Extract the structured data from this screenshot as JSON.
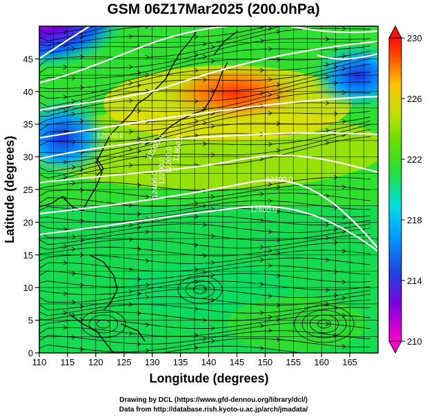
{
  "title": "GSM 06Z17Mar2025 (200.0hPa)",
  "xlabel": "Longitude (degrees)",
  "ylabel": "Latitude  (degrees)",
  "x_ticks": [
    "110",
    "115",
    "120",
    "125",
    "130",
    "135",
    "140",
    "145",
    "150",
    "155",
    "160",
    "165"
  ],
  "y_ticks": [
    "0",
    "5",
    "10",
    "15",
    "20",
    "25",
    "30",
    "35",
    "40",
    "45"
  ],
  "colorbar": {
    "ticks": [
      "230",
      "226",
      "222",
      "218",
      "214",
      "210"
    ],
    "min": 210,
    "max": 230,
    "colors": [
      "#ff00cc",
      "#a000e0",
      "#2020e0",
      "#00a0ff",
      "#00e0e0",
      "#00e080",
      "#20e020",
      "#a0e000",
      "#e0e000",
      "#ffa000",
      "#ff4000",
      "#ff1010"
    ]
  },
  "contour_labels": [
    "12600.0",
    "12400.0",
    "12400.0",
    "12200.0",
    "12200.0",
    "12000.0",
    "12000.0",
    "11800.0"
  ],
  "credits": {
    "line1": "Drawing by DCL (https://www.gfd-dennou.org/library/dcl/)",
    "line2": "Data from http://database.rish.kyoto-u.ac.jp/arch/jmadata/"
  },
  "map": {
    "lon_range": [
      110,
      170
    ],
    "lat_range": [
      0,
      50
    ],
    "variable": "temperature (K)",
    "overlay": "streamlines and geopotential height contours"
  }
}
